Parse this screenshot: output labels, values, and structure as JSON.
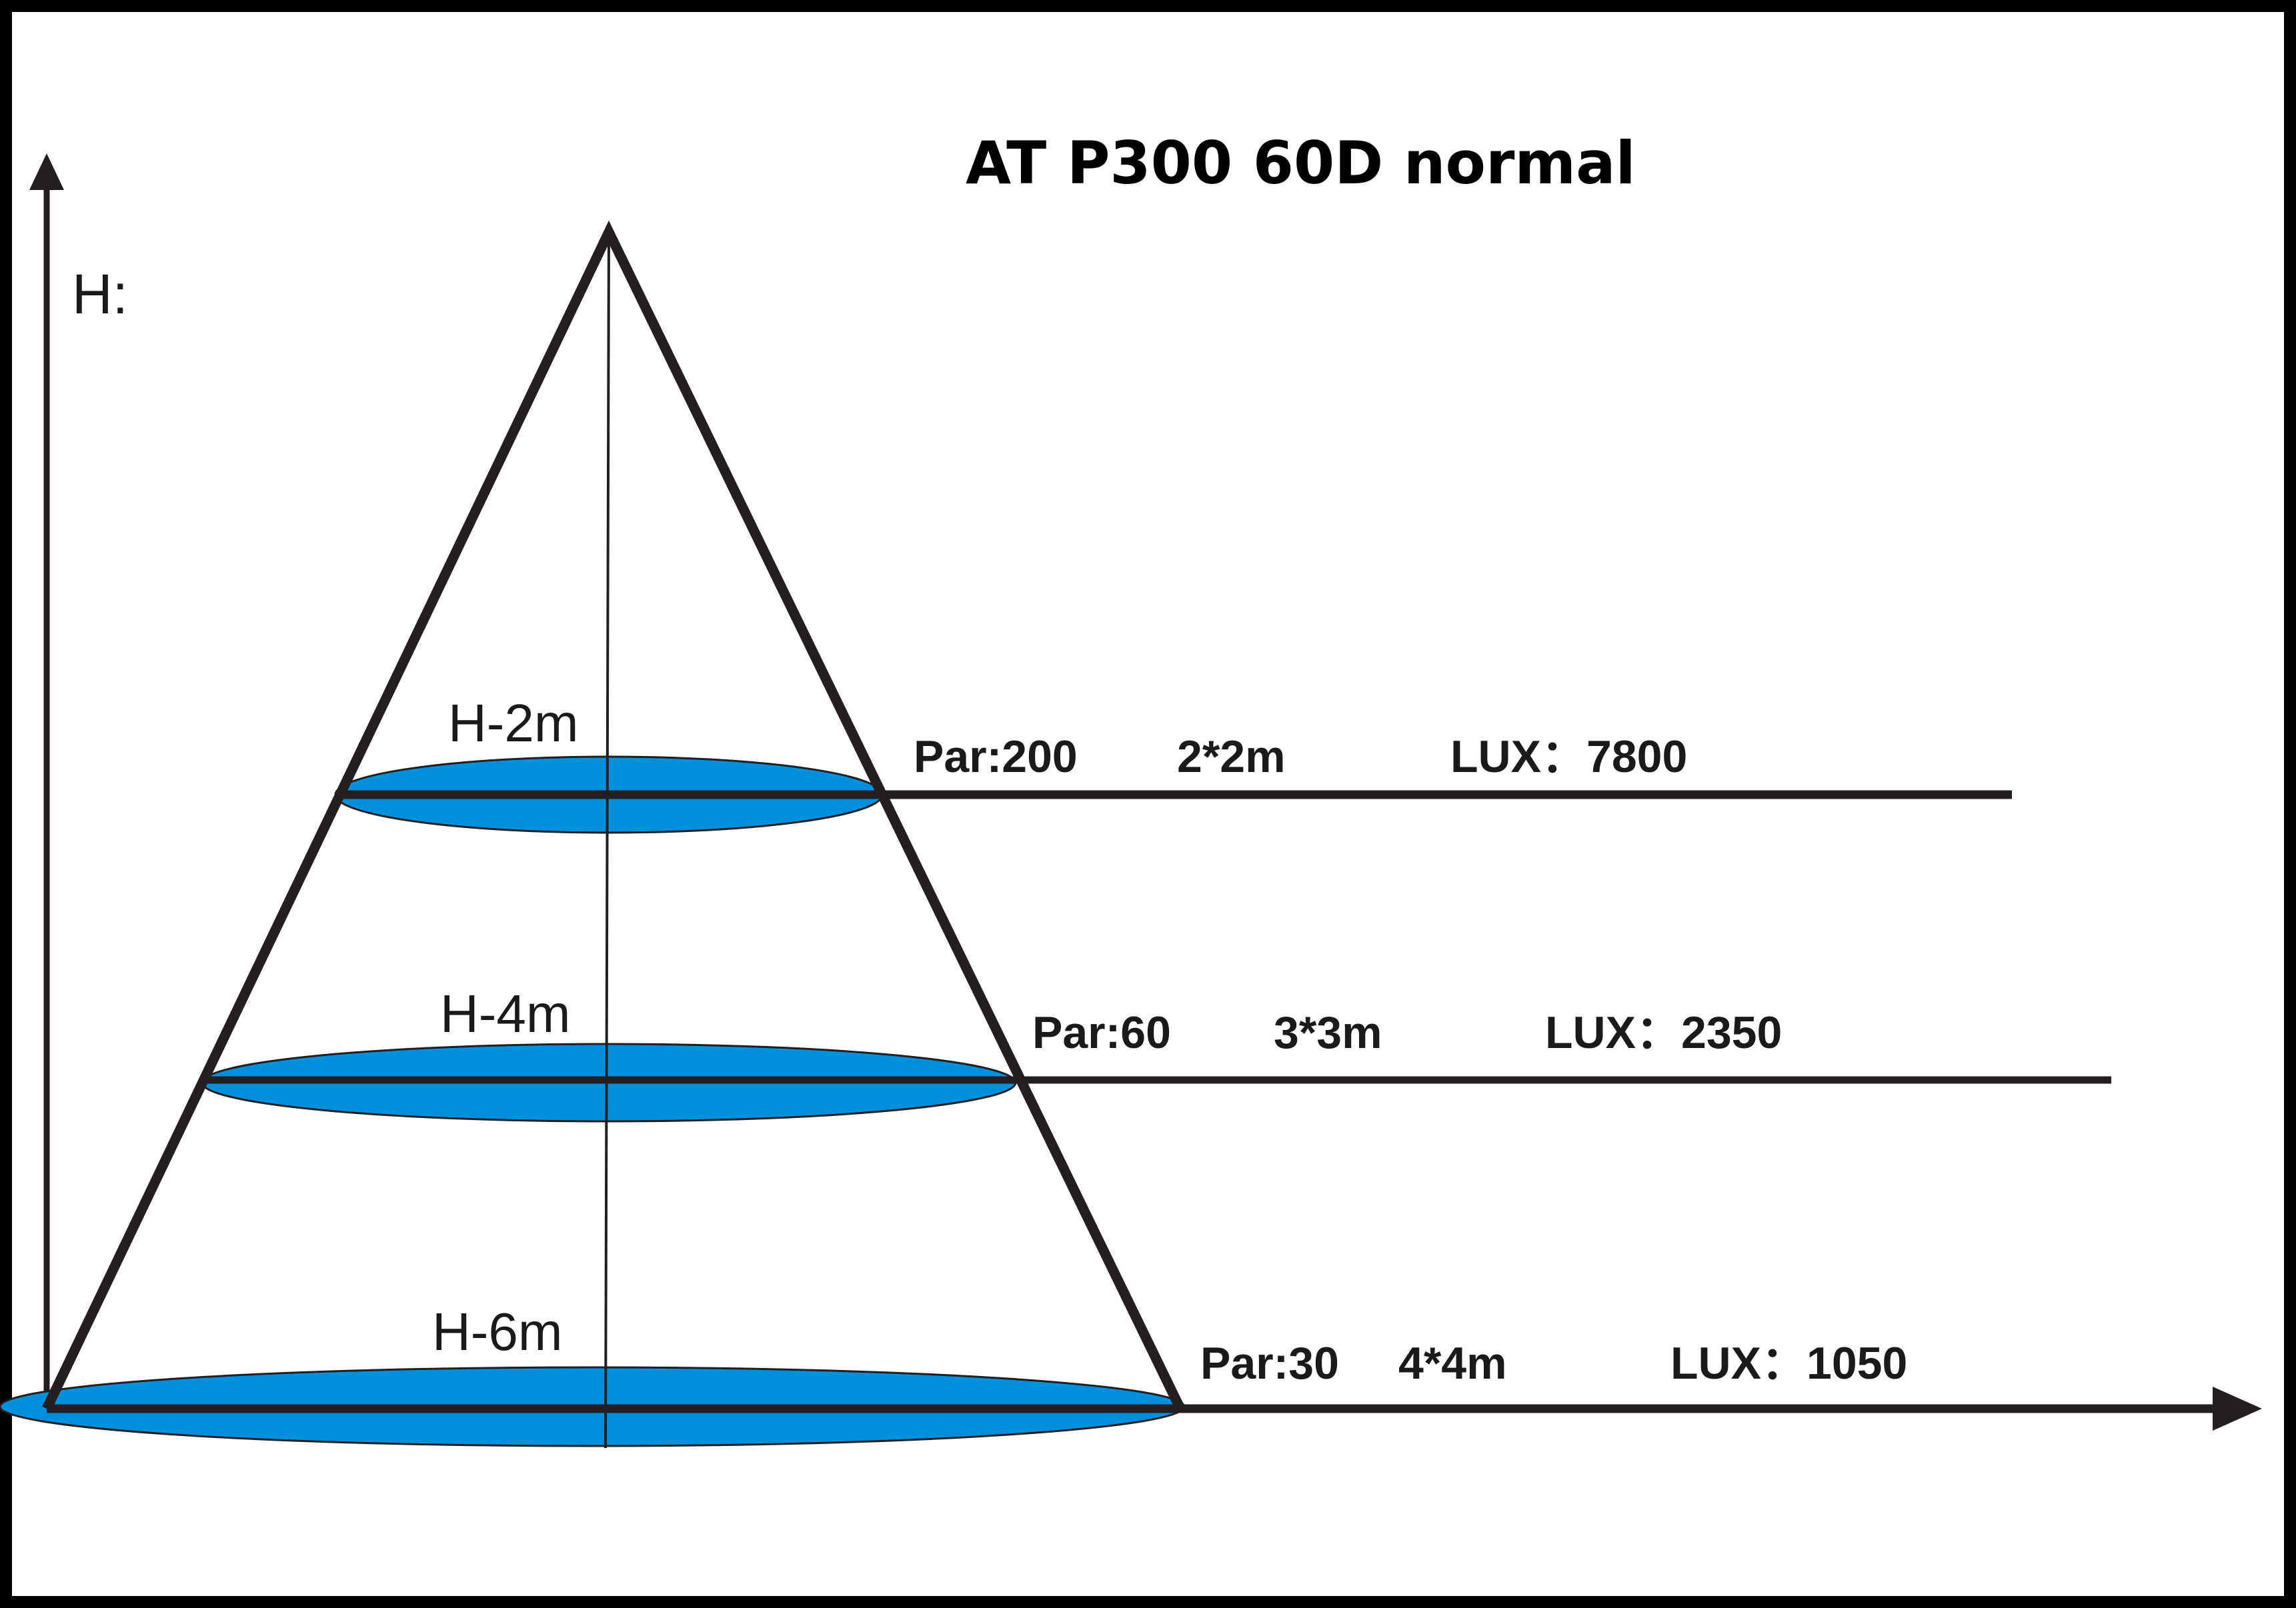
{
  "title": "AT P300 60D normal",
  "axis": {
    "y_label": "H:"
  },
  "colors": {
    "beam": "#0090dc",
    "line": "#231f20",
    "background": "#ffffff"
  },
  "levels": [
    {
      "label": "H-2m",
      "par": "Par:200",
      "area": "2*2m",
      "lux": "LUX：7800"
    },
    {
      "label": "H-4m",
      "par": "Par:60",
      "area": "3*3m",
      "lux": "LUX：2350"
    },
    {
      "label": "H-6m",
      "par": "Par:30",
      "area": "4*4m",
      "lux": "LUX：1050"
    }
  ]
}
